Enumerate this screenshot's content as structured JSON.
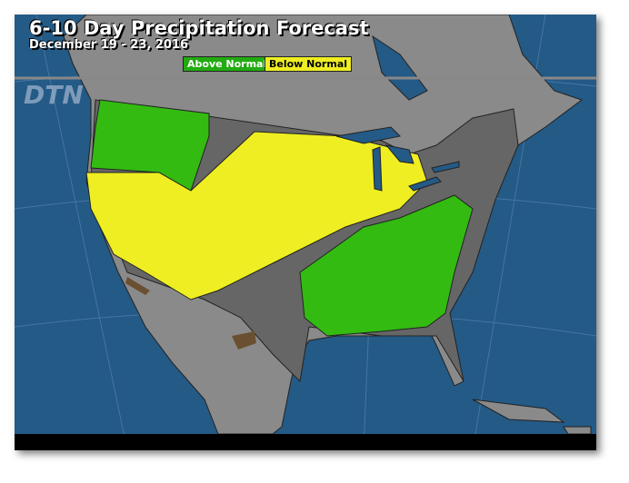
{
  "title": "6-10 Day Precipitation Forecast",
  "subtitle": "December 19 - 23, 2016",
  "legend": [
    {
      "label": "Above Normal",
      "color": "#22aa11"
    },
    {
      "label": "Below Normal",
      "color": "#eeee22"
    }
  ],
  "brand": "DTN",
  "colors": {
    "ocean": "#245a86",
    "land": "#8a8a8a",
    "normal": "#666666",
    "above": "#33bb11",
    "below": "#eeee22"
  }
}
